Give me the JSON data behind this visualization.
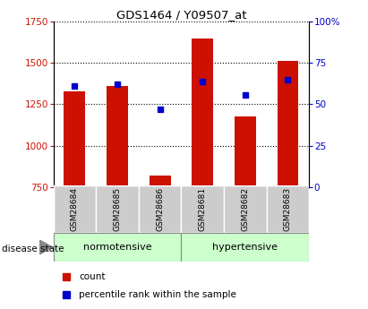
{
  "title": "GDS1464 / Y09507_at",
  "samples": [
    "GSM28684",
    "GSM28685",
    "GSM28686",
    "GSM28681",
    "GSM28682",
    "GSM28683"
  ],
  "count_values": [
    1330,
    1360,
    820,
    1650,
    1175,
    1510
  ],
  "percentile_positions": [
    1360,
    1370,
    1220,
    1390,
    1305,
    1400
  ],
  "ylim_left": [
    750,
    1750
  ],
  "ylim_right": [
    0,
    100
  ],
  "yticks_left": [
    750,
    1000,
    1250,
    1500,
    1750
  ],
  "yticks_right": [
    0,
    25,
    50,
    75,
    100
  ],
  "ytick_labels_right": [
    "0",
    "25",
    "50",
    "75",
    "100%"
  ],
  "bar_color": "#cc1100",
  "marker_color": "#0000cc",
  "group1_label": "normotensive",
  "group2_label": "hypertensive",
  "group_bg_color": "#ccffcc",
  "sample_bg_color": "#cccccc",
  "legend_count_label": "count",
  "legend_percentile_label": "percentile rank within the sample",
  "disease_state_label": "disease state",
  "bar_width": 0.5
}
